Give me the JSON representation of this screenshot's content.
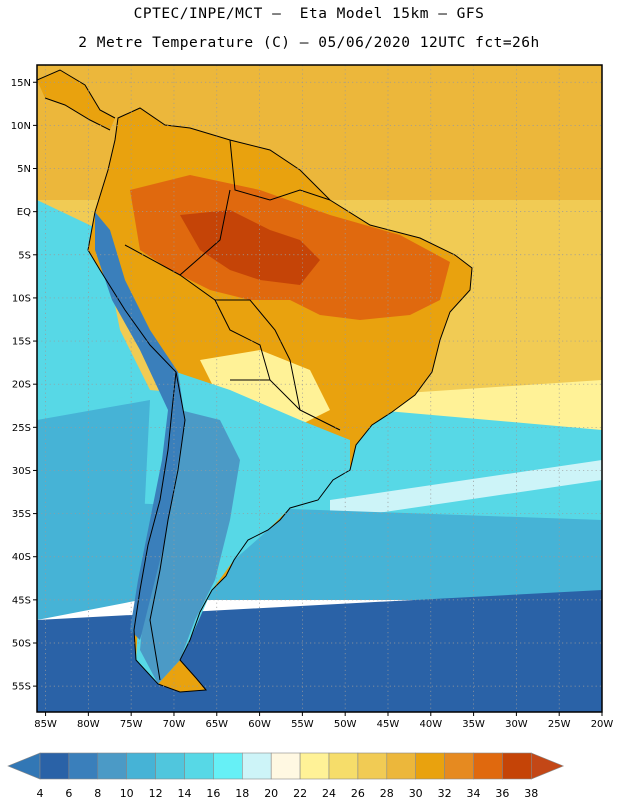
{
  "header": {
    "line1": "CPTEC/INPE/MCT –  Eta Model 15km – GFS",
    "line2": "2 Metre Temperature (C) – 05/06/2020 12UTC fct=26h"
  },
  "map": {
    "lon_range": [
      -86,
      -20
    ],
    "lat_range": [
      -58,
      17
    ],
    "lon_ticks": [
      {
        "value": -85,
        "label": "85W"
      },
      {
        "value": -80,
        "label": "80W"
      },
      {
        "value": -75,
        "label": "75W"
      },
      {
        "value": -70,
        "label": "70W"
      },
      {
        "value": -65,
        "label": "65W"
      },
      {
        "value": -60,
        "label": "60W"
      },
      {
        "value": -55,
        "label": "55W"
      },
      {
        "value": -50,
        "label": "50W"
      },
      {
        "value": -45,
        "label": "45W"
      },
      {
        "value": -40,
        "label": "40W"
      },
      {
        "value": -35,
        "label": "35W"
      },
      {
        "value": -30,
        "label": "30W"
      },
      {
        "value": -25,
        "label": "25W"
      },
      {
        "value": -20,
        "label": "20W"
      }
    ],
    "lat_ticks": [
      {
        "value": 15,
        "label": "15N"
      },
      {
        "value": 10,
        "label": "10N"
      },
      {
        "value": 5,
        "label": "5N"
      },
      {
        "value": 0,
        "label": "EQ"
      },
      {
        "value": -5,
        "label": "5S"
      },
      {
        "value": -10,
        "label": "10S"
      },
      {
        "value": -15,
        "label": "15S"
      },
      {
        "value": -20,
        "label": "20S"
      },
      {
        "value": -25,
        "label": "25S"
      },
      {
        "value": -30,
        "label": "30S"
      },
      {
        "value": -35,
        "label": "35S"
      },
      {
        "value": -40,
        "label": "40S"
      },
      {
        "value": -45,
        "label": "45S"
      },
      {
        "value": -50,
        "label": "50S"
      },
      {
        "value": -55,
        "label": "55S"
      }
    ]
  },
  "colorbar": {
    "labels": [
      "4",
      "6",
      "8",
      "10",
      "12",
      "14",
      "16",
      "18",
      "20",
      "22",
      "24",
      "26",
      "28",
      "30",
      "32",
      "34",
      "36",
      "38"
    ],
    "colors": [
      "#2a62a7",
      "#3a7fbb",
      "#4b9ac6",
      "#46b3d6",
      "#50c6dd",
      "#57d8e6",
      "#66f0f6",
      "#cdf4f8",
      "#fff8e2",
      "#fff297",
      "#f6dd6a",
      "#f1cb54",
      "#ecb73b",
      "#e9a20e",
      "#e68a20",
      "#e0690e",
      "#c54407"
    ],
    "end_low_color": "#3277b5",
    "end_high_color": "#c34716"
  },
  "scale_colors": {
    "ocean_south": "#2a62a7",
    "ocean_mid": "#46b3d6",
    "ocean_cool": "#57d8e6",
    "ocean_warm": "#f1cb54",
    "ocean_tropic": "#ecb73b",
    "land_hot": "#e0690e",
    "land_very_hot": "#c54407",
    "land_warm": "#e9a20e",
    "land_mild": "#fff297",
    "andes": "#3a7fbb",
    "patagonia": "#4b9ac6"
  }
}
